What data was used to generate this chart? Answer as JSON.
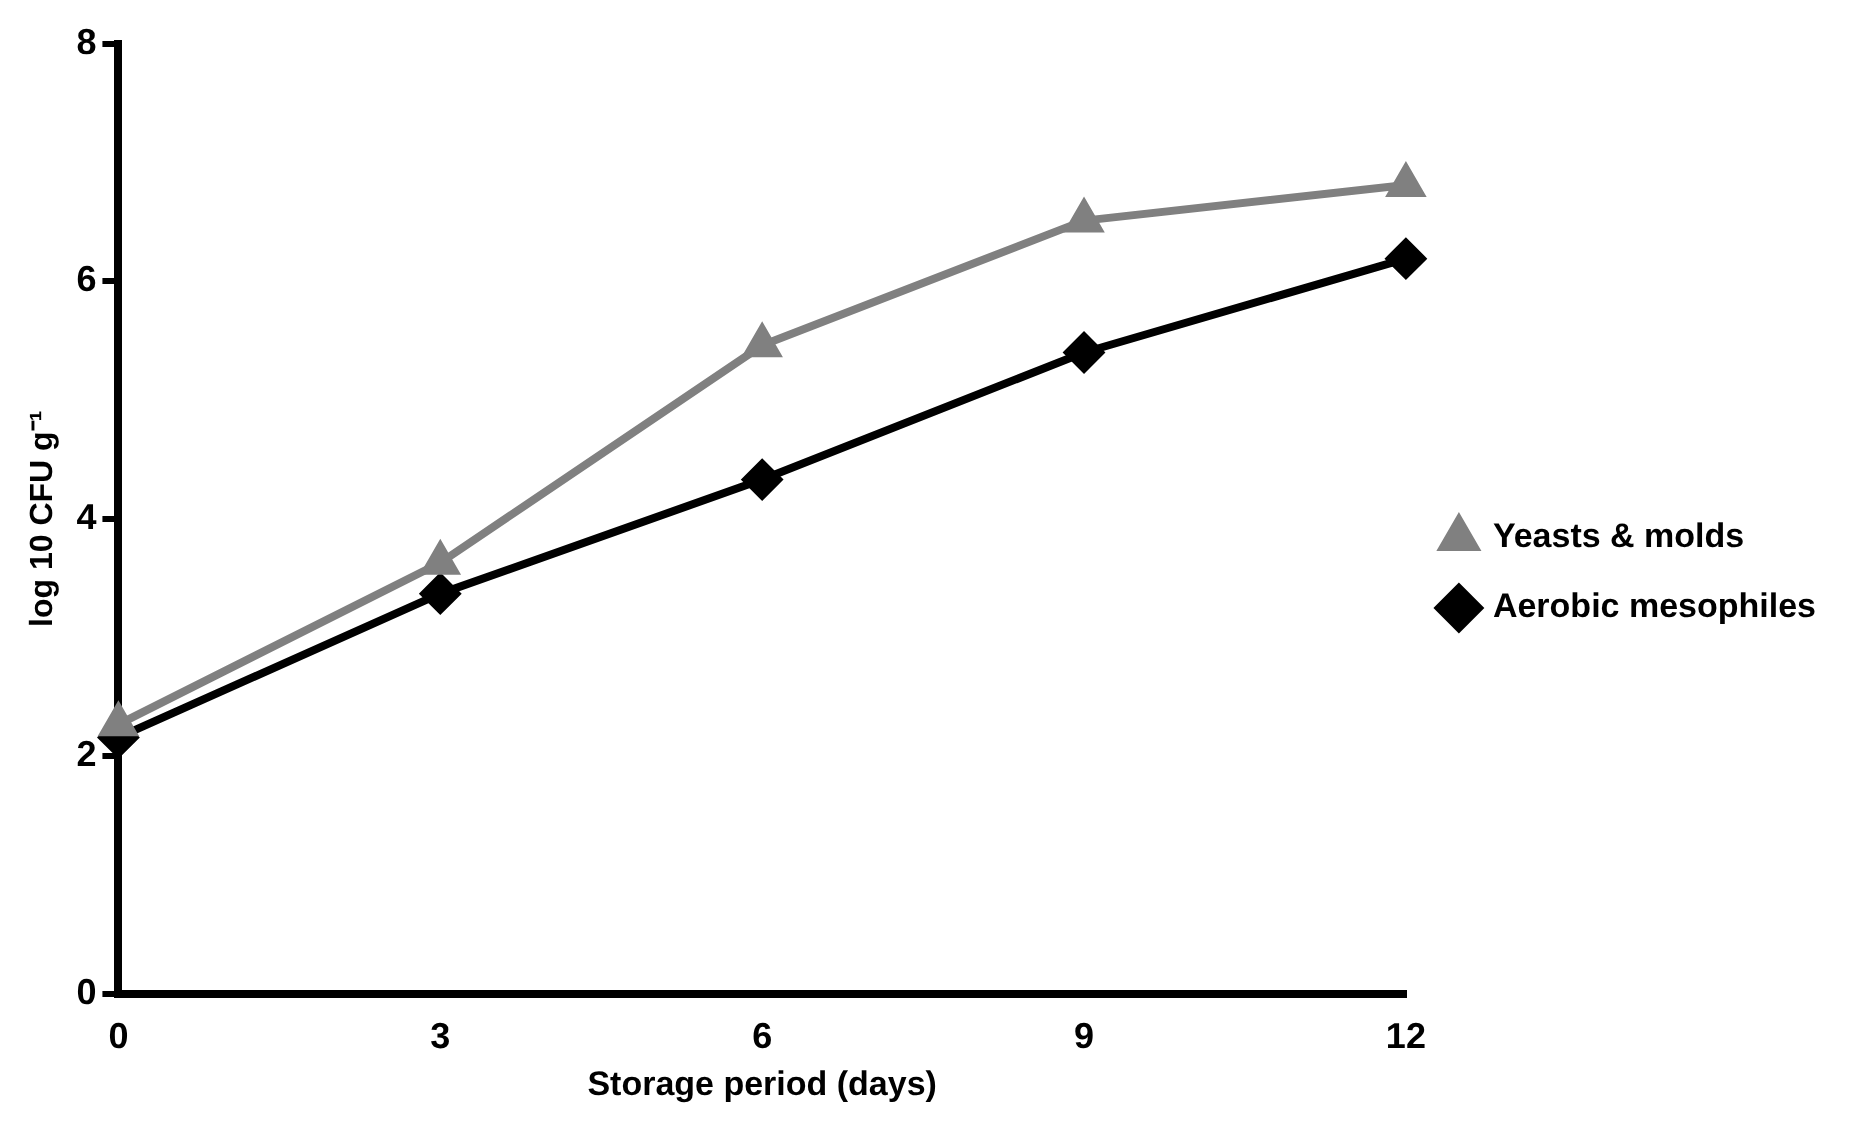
{
  "chart_data": {
    "type": "line",
    "xlabel": "Storage period (days)",
    "ylabel": "log 10 CFU g⁻¹",
    "categories": [
      "0",
      "3",
      "6",
      "9",
      "12"
    ],
    "series": [
      {
        "name": "Aerobic mesophiles",
        "color": "#000000",
        "marker": "diamond",
        "values": [
          2.16,
          3.37,
          4.33,
          5.4,
          6.19
        ]
      },
      {
        "name": "Yeasts & molds",
        "color": "#808080",
        "marker": "triangle",
        "values": [
          2.27,
          3.63,
          5.46,
          6.51,
          6.81
        ]
      }
    ],
    "ylim": [
      0,
      8
    ],
    "yticks": [
      0,
      2,
      4,
      6,
      8
    ],
    "grid": false,
    "legend": "right"
  }
}
